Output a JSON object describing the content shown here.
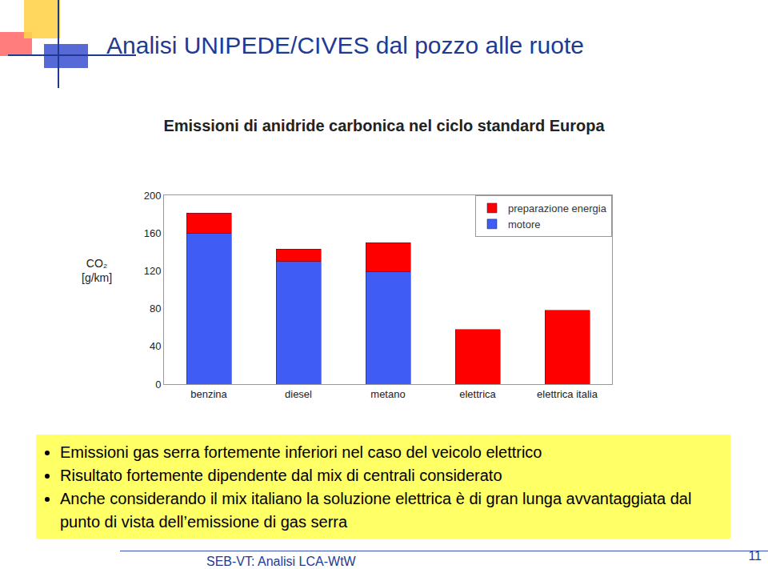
{
  "slide": {
    "title": "Analisi UNIPEDE/CIVES dal pozzo alle ruote",
    "bullets": [
      "Emissioni gas serra fortemente inferiori nel caso del veicolo elettrico",
      "Risultato fortemente dipendente dal mix di centrali considerato",
      "Anche considerando il mix italiano la soluzione elettrica è di gran lunga avvantaggiata dal punto di vista dell’emissione di gas serra"
    ],
    "footer": "SEB-VT: Analisi LCA-WtW",
    "page": "11"
  },
  "chart_data": {
    "type": "bar",
    "stacked": true,
    "title": "Emissioni di anidride carbonica nel ciclo standard Europa",
    "y_label": "CO₂ [g/km]",
    "categories": [
      "benzina",
      "diesel",
      "metano",
      "elettrica",
      "elettrica italia"
    ],
    "series": [
      {
        "name": "motore",
        "color": "#3f5df5",
        "values": [
          160,
          130,
          119,
          0,
          0
        ]
      },
      {
        "name": "preparazione energia",
        "color": "#ff0000",
        "values": [
          21,
          13,
          31,
          58,
          78
        ]
      }
    ],
    "ylim": [
      0,
      200
    ],
    "yticks": [
      0,
      40,
      80,
      120,
      160,
      200
    ],
    "grid": false,
    "legend": "top right"
  }
}
